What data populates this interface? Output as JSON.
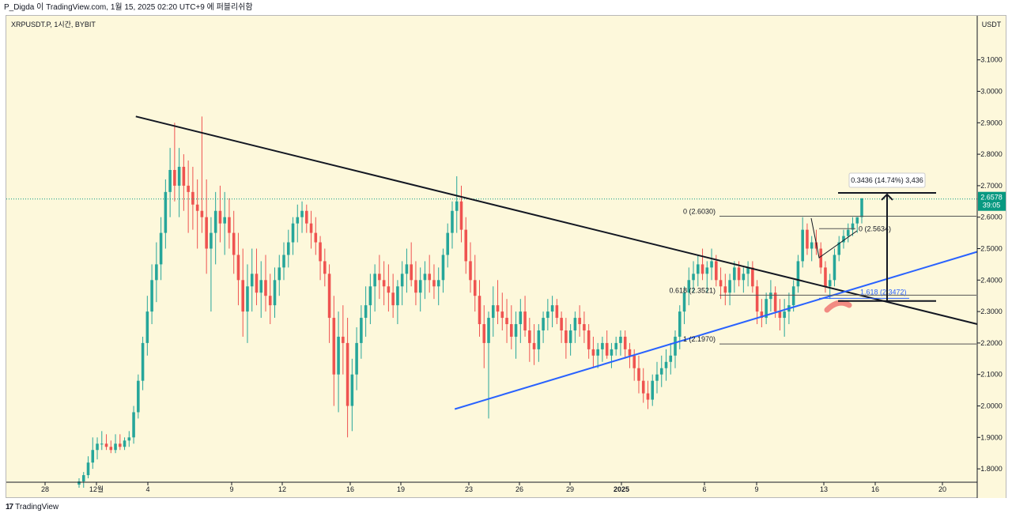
{
  "header": {
    "title": "P_Digda 이 TradingView.com, 1월 15, 2025 02:20 UTC+9 에 퍼블리쉬함"
  },
  "symbol": {
    "label": "XRPUSDT.P, 1시간, BYBIT"
  },
  "price_axis": {
    "currency": "USDT",
    "ticks": [
      "3.1000",
      "3.0000",
      "2.9000",
      "2.8000",
      "2.7000",
      "2.6000",
      "2.5000",
      "2.4000",
      "2.3000",
      "2.2000",
      "2.1000",
      "2.0000",
      "1.9000",
      "1.8000"
    ],
    "current_price": "2.6578",
    "countdown": "39:05",
    "current_bg": "#089981"
  },
  "time_axis": {
    "ticks": [
      "28",
      "12월",
      "4",
      "9",
      "12",
      "16",
      "19",
      "23",
      "26",
      "29",
      "2025",
      "6",
      "9",
      "13",
      "16",
      "20"
    ]
  },
  "annotations": {
    "fib_0": "0 (2.6030)",
    "fib_0618": "0.618 (2.3521)",
    "fib_1": "1 (2.1970)",
    "fib_small_0": "0 (2.5634)",
    "fib_1618": "1.618 (2.3472)",
    "measure": "0.3436 (14.74%) 3,436"
  },
  "footer": {
    "logo_mark": "17",
    "logo_text": "TradingView"
  },
  "chart_data": {
    "type": "candlestick",
    "symbol": "XRPUSDT.P",
    "interval": "1h",
    "exchange": "BYBIT",
    "ylim": [
      1.76,
      3.19
    ],
    "current_price": 2.6578,
    "candles": [
      [
        1.75,
        1.77,
        1.74,
        1.76
      ],
      [
        1.76,
        1.79,
        1.74,
        1.78
      ],
      [
        1.78,
        1.84,
        1.77,
        1.82
      ],
      [
        1.82,
        1.9,
        1.8,
        1.86
      ],
      [
        1.86,
        1.9,
        1.83,
        1.88
      ],
      [
        1.88,
        1.92,
        1.86,
        1.88
      ],
      [
        1.88,
        1.91,
        1.86,
        1.87
      ],
      [
        1.87,
        1.89,
        1.85,
        1.86
      ],
      [
        1.86,
        1.91,
        1.85,
        1.88
      ],
      [
        1.88,
        1.91,
        1.86,
        1.87
      ],
      [
        1.87,
        1.9,
        1.86,
        1.89
      ],
      [
        1.89,
        1.92,
        1.87,
        1.9
      ],
      [
        1.9,
        2.0,
        1.88,
        1.98
      ],
      [
        1.98,
        2.1,
        1.96,
        2.08
      ],
      [
        2.08,
        2.22,
        2.05,
        2.2
      ],
      [
        2.2,
        2.35,
        2.16,
        2.3
      ],
      [
        2.3,
        2.45,
        2.26,
        2.4
      ],
      [
        2.4,
        2.52,
        2.33,
        2.45
      ],
      [
        2.45,
        2.6,
        2.4,
        2.55
      ],
      [
        2.55,
        2.72,
        2.5,
        2.68
      ],
      [
        2.68,
        2.82,
        2.6,
        2.75
      ],
      [
        2.75,
        2.9,
        2.65,
        2.7
      ],
      [
        2.7,
        2.82,
        2.6,
        2.76
      ],
      [
        2.76,
        2.8,
        2.62,
        2.7
      ],
      [
        2.7,
        2.78,
        2.55,
        2.68
      ],
      [
        2.68,
        2.76,
        2.56,
        2.64
      ],
      [
        2.64,
        2.72,
        2.5,
        2.62
      ],
      [
        2.62,
        2.92,
        2.55,
        2.6
      ],
      [
        2.6,
        2.72,
        2.42,
        2.5
      ],
      [
        2.5,
        2.6,
        2.3,
        2.55
      ],
      [
        2.55,
        2.68,
        2.45,
        2.62
      ],
      [
        2.62,
        2.7,
        2.52,
        2.58
      ],
      [
        2.58,
        2.68,
        2.48,
        2.6
      ],
      [
        2.6,
        2.66,
        2.5,
        2.55
      ],
      [
        2.55,
        2.62,
        2.42,
        2.48
      ],
      [
        2.48,
        2.55,
        2.32,
        2.4
      ],
      [
        2.4,
        2.5,
        2.22,
        2.3
      ],
      [
        2.3,
        2.45,
        2.2,
        2.38
      ],
      [
        2.38,
        2.5,
        2.3,
        2.42
      ],
      [
        2.42,
        2.5,
        2.32,
        2.36
      ],
      [
        2.36,
        2.46,
        2.28,
        2.4
      ],
      [
        2.4,
        2.48,
        2.3,
        2.35
      ],
      [
        2.35,
        2.42,
        2.26,
        2.32
      ],
      [
        2.32,
        2.44,
        2.28,
        2.4
      ],
      [
        2.4,
        2.48,
        2.35,
        2.44
      ],
      [
        2.44,
        2.52,
        2.4,
        2.48
      ],
      [
        2.48,
        2.56,
        2.44,
        2.52
      ],
      [
        2.52,
        2.6,
        2.48,
        2.58
      ],
      [
        2.58,
        2.64,
        2.52,
        2.6
      ],
      [
        2.6,
        2.65,
        2.55,
        2.62
      ],
      [
        2.62,
        2.64,
        2.55,
        2.58
      ],
      [
        2.58,
        2.62,
        2.5,
        2.55
      ],
      [
        2.55,
        2.6,
        2.48,
        2.52
      ],
      [
        2.52,
        2.54,
        2.4,
        2.46
      ],
      [
        2.46,
        2.5,
        2.38,
        2.42
      ],
      [
        2.42,
        2.45,
        2.2,
        2.28
      ],
      [
        2.28,
        2.35,
        2.0,
        2.1
      ],
      [
        2.1,
        2.3,
        1.98,
        2.22
      ],
      [
        2.22,
        2.32,
        2.1,
        2.2
      ],
      [
        2.2,
        2.28,
        1.9,
        2.0
      ],
      [
        2.0,
        2.15,
        1.92,
        2.1
      ],
      [
        2.1,
        2.25,
        2.05,
        2.2
      ],
      [
        2.2,
        2.32,
        2.15,
        2.28
      ],
      [
        2.28,
        2.38,
        2.22,
        2.32
      ],
      [
        2.32,
        2.42,
        2.26,
        2.38
      ],
      [
        2.38,
        2.45,
        2.3,
        2.42
      ],
      [
        2.42,
        2.48,
        2.34,
        2.4
      ],
      [
        2.4,
        2.46,
        2.32,
        2.38
      ],
      [
        2.38,
        2.45,
        2.3,
        2.36
      ],
      [
        2.36,
        2.42,
        2.28,
        2.32
      ],
      [
        2.32,
        2.4,
        2.26,
        2.38
      ],
      [
        2.38,
        2.46,
        2.32,
        2.42
      ],
      [
        2.42,
        2.5,
        2.36,
        2.45
      ],
      [
        2.45,
        2.52,
        2.38,
        2.4
      ],
      [
        2.4,
        2.46,
        2.32,
        2.36
      ],
      [
        2.36,
        2.44,
        2.3,
        2.4
      ],
      [
        2.4,
        2.46,
        2.34,
        2.42
      ],
      [
        2.42,
        2.48,
        2.36,
        2.4
      ],
      [
        2.4,
        2.45,
        2.34,
        2.38
      ],
      [
        2.38,
        2.44,
        2.32,
        2.4
      ],
      [
        2.4,
        2.5,
        2.36,
        2.48
      ],
      [
        2.48,
        2.58,
        2.44,
        2.55
      ],
      [
        2.55,
        2.65,
        2.5,
        2.62
      ],
      [
        2.62,
        2.73,
        2.55,
        2.65
      ],
      [
        2.65,
        2.7,
        2.52,
        2.56
      ],
      [
        2.56,
        2.6,
        2.42,
        2.46
      ],
      [
        2.46,
        2.52,
        2.36,
        2.4
      ],
      [
        2.4,
        2.48,
        2.3,
        2.35
      ],
      [
        2.35,
        2.4,
        2.22,
        2.26
      ],
      [
        2.26,
        2.32,
        2.12,
        2.2
      ],
      [
        2.2,
        2.3,
        1.96,
        2.28
      ],
      [
        2.28,
        2.38,
        2.22,
        2.32
      ],
      [
        2.32,
        2.4,
        2.26,
        2.3
      ],
      [
        2.3,
        2.36,
        2.24,
        2.28
      ],
      [
        2.28,
        2.34,
        2.2,
        2.26
      ],
      [
        2.26,
        2.32,
        2.18,
        2.22
      ],
      [
        2.22,
        2.3,
        2.15,
        2.26
      ],
      [
        2.26,
        2.34,
        2.2,
        2.3
      ],
      [
        2.3,
        2.35,
        2.22,
        2.24
      ],
      [
        2.24,
        2.28,
        2.14,
        2.2
      ],
      [
        2.2,
        2.26,
        2.13,
        2.18
      ],
      [
        2.18,
        2.26,
        2.14,
        2.24
      ],
      [
        2.24,
        2.3,
        2.2,
        2.28
      ],
      [
        2.28,
        2.34,
        2.24,
        2.3
      ],
      [
        2.3,
        2.35,
        2.25,
        2.32
      ],
      [
        2.32,
        2.34,
        2.26,
        2.28
      ],
      [
        2.28,
        2.3,
        2.2,
        2.24
      ],
      [
        2.24,
        2.28,
        2.15,
        2.2
      ],
      [
        2.2,
        2.26,
        2.16,
        2.24
      ],
      [
        2.24,
        2.3,
        2.2,
        2.28
      ],
      [
        2.28,
        2.32,
        2.22,
        2.26
      ],
      [
        2.26,
        2.3,
        2.2,
        2.24
      ],
      [
        2.24,
        2.26,
        2.15,
        2.18
      ],
      [
        2.18,
        2.22,
        2.12,
        2.16
      ],
      [
        2.16,
        2.2,
        2.12,
        2.18
      ],
      [
        2.18,
        2.22,
        2.14,
        2.2
      ],
      [
        2.2,
        2.24,
        2.15,
        2.16
      ],
      [
        2.16,
        2.2,
        2.12,
        2.18
      ],
      [
        2.18,
        2.22,
        2.16,
        2.2
      ],
      [
        2.2,
        2.24,
        2.16,
        2.22
      ],
      [
        2.22,
        2.24,
        2.15,
        2.18
      ],
      [
        2.18,
        2.2,
        2.12,
        2.16
      ],
      [
        2.16,
        2.18,
        2.08,
        2.12
      ],
      [
        2.12,
        2.16,
        2.04,
        2.08
      ],
      [
        2.08,
        2.12,
        2.01,
        2.04
      ],
      [
        2.04,
        2.08,
        1.99,
        2.02
      ],
      [
        2.02,
        2.1,
        2.0,
        2.08
      ],
      [
        2.08,
        2.14,
        2.04,
        2.1
      ],
      [
        2.1,
        2.16,
        2.06,
        2.12
      ],
      [
        2.12,
        2.18,
        2.08,
        2.14
      ],
      [
        2.14,
        2.2,
        2.1,
        2.16
      ],
      [
        2.16,
        2.24,
        2.12,
        2.22
      ],
      [
        2.22,
        2.32,
        2.18,
        2.3
      ],
      [
        2.3,
        2.38,
        2.26,
        2.36
      ],
      [
        2.36,
        2.44,
        2.32,
        2.4
      ],
      [
        2.4,
        2.46,
        2.36,
        2.42
      ],
      [
        2.42,
        2.48,
        2.38,
        2.45
      ],
      [
        2.45,
        2.5,
        2.4,
        2.42
      ],
      [
        2.42,
        2.46,
        2.36,
        2.44
      ],
      [
        2.44,
        2.5,
        2.4,
        2.46
      ],
      [
        2.46,
        2.48,
        2.38,
        2.4
      ],
      [
        2.4,
        2.44,
        2.34,
        2.38
      ],
      [
        2.38,
        2.42,
        2.32,
        2.36
      ],
      [
        2.36,
        2.42,
        2.32,
        2.4
      ],
      [
        2.4,
        2.46,
        2.36,
        2.44
      ],
      [
        2.44,
        2.46,
        2.38,
        2.4
      ],
      [
        2.4,
        2.44,
        2.36,
        2.42
      ],
      [
        2.42,
        2.46,
        2.38,
        2.44
      ],
      [
        2.44,
        2.46,
        2.36,
        2.38
      ],
      [
        2.38,
        2.4,
        2.26,
        2.3
      ],
      [
        2.3,
        2.34,
        2.25,
        2.28
      ],
      [
        2.28,
        2.36,
        2.26,
        2.34
      ],
      [
        2.34,
        2.4,
        2.3,
        2.36
      ],
      [
        2.36,
        2.38,
        2.28,
        2.3
      ],
      [
        2.3,
        2.34,
        2.24,
        2.28
      ],
      [
        2.28,
        2.34,
        2.22,
        2.3
      ],
      [
        2.3,
        2.36,
        2.26,
        2.32
      ],
      [
        2.32,
        2.4,
        2.3,
        2.38
      ],
      [
        2.38,
        2.48,
        2.36,
        2.46
      ],
      [
        2.46,
        2.6,
        2.44,
        2.56
      ],
      [
        2.56,
        2.58,
        2.48,
        2.5
      ],
      [
        2.5,
        2.54,
        2.46,
        2.52
      ],
      [
        2.52,
        2.56,
        2.48,
        2.5
      ],
      [
        2.5,
        2.52,
        2.42,
        2.44
      ],
      [
        2.44,
        2.46,
        2.36,
        2.38
      ],
      [
        2.38,
        2.42,
        2.34,
        2.4
      ],
      [
        2.4,
        2.5,
        2.38,
        2.48
      ],
      [
        2.48,
        2.54,
        2.46,
        2.52
      ],
      [
        2.52,
        2.56,
        2.5,
        2.54
      ],
      [
        2.54,
        2.58,
        2.52,
        2.56
      ],
      [
        2.56,
        2.6,
        2.54,
        2.58
      ],
      [
        2.58,
        2.6,
        2.55,
        2.6
      ],
      [
        2.6,
        2.66,
        2.58,
        2.66
      ]
    ],
    "drawings": {
      "descending_trendline": {
        "from": [
          2.9,
          2.92
        ],
        "to": [
          38.8,
          2.26
        ]
      },
      "ascending_trendline": {
        "from": [
          19.2,
          1.99
        ],
        "to": [
          38.8,
          2.49
        ]
      },
      "fib_retracement": {
        "levels": [
          [
            "0",
            2.603
          ],
          [
            "0.618",
            2.3521
          ],
          [
            "1",
            2.197
          ]
        ]
      },
      "fib_extension": {
        "levels": [
          [
            "0",
            2.5634
          ],
          [
            "1.618",
            2.3472
          ]
        ]
      },
      "price_range_measure": {
        "from": 2.3336,
        "to": 2.6772,
        "change": 0.3436,
        "percent": 14.74
      }
    }
  }
}
